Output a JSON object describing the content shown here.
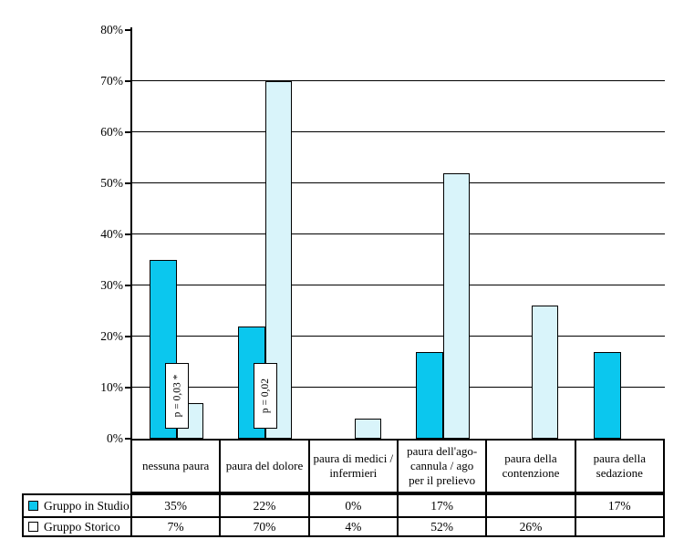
{
  "chart_data": {
    "type": "bar",
    "title": "",
    "categories": [
      "nessuna paura",
      "paura del dolore",
      "paura di medici /\ninfermieri",
      "paura dell'ago-\ncannula / ago\nper il prelievo",
      "paura della\ncontenzione",
      "paura della\nsedazione"
    ],
    "series": [
      {
        "name": "Gruppo in Studio",
        "values": [
          35,
          22,
          0,
          17,
          null,
          17
        ],
        "color": "#0BC7EE"
      },
      {
        "name": "Gruppo Storico",
        "values": [
          7,
          70,
          4,
          52,
          26,
          null
        ],
        "color": "#D9F4FA"
      }
    ],
    "y_axis": {
      "ticks": [
        "80%",
        "70%",
        "60%",
        "50%",
        "40%",
        "30%",
        "20%",
        "10%",
        "0%"
      ],
      "min": 0,
      "max": 80,
      "grid": true
    },
    "legend_position": "table-left",
    "annotations": [
      {
        "text": "p = 0,03 *",
        "category_index": 0
      },
      {
        "text": "p = 0,02",
        "category_index": 1
      }
    ],
    "table": {
      "rows": [
        {
          "label": "Gruppo in Studio",
          "marker_color": "#0BC7EE",
          "cells": [
            "35%",
            "22%",
            "0%",
            "17%",
            "",
            "17%"
          ]
        },
        {
          "label": "Gruppo Storico",
          "marker_color": "#FFFFFF",
          "cells": [
            "7%",
            "70%",
            "4%",
            "52%",
            "26%",
            ""
          ]
        }
      ]
    },
    "colors": {
      "bar_border": "#000000",
      "grid": "#000000",
      "background": "#FFFFFF"
    }
  }
}
